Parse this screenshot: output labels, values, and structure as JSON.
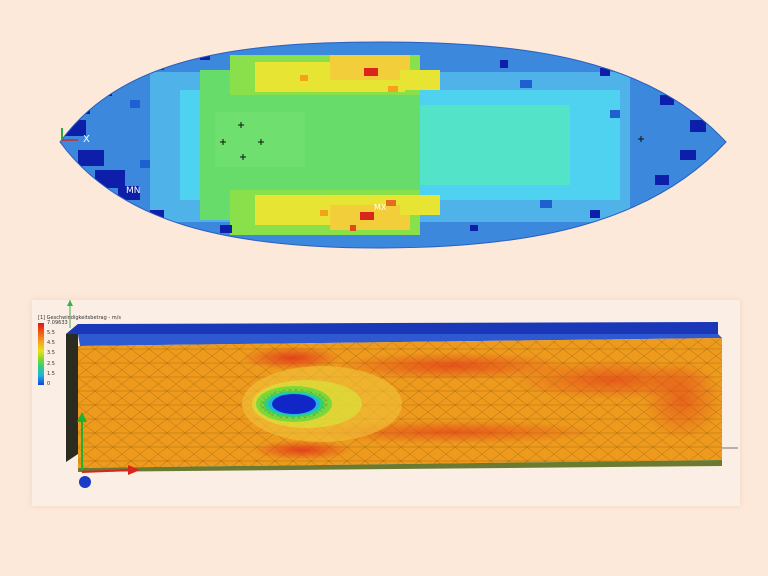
{
  "top_view": {
    "label_x": "X",
    "label_mn": "MN",
    "label_mx": "MX"
  },
  "bottom_view": {
    "legend": {
      "title": "[1] Geschwindigkeitsbetrag - m/s",
      "max_value": "7.09633",
      "ticks": [
        "5.5",
        "4.5",
        "3.5",
        "2.5",
        "1.5",
        "0"
      ]
    }
  },
  "colors": {
    "background": "#fde9da",
    "blue": "#0d2ea8",
    "cyan": "#4fe3f0",
    "green": "#5ede3a",
    "yellow": "#f2e431",
    "orange": "#f0a020",
    "red": "#d8261c"
  }
}
